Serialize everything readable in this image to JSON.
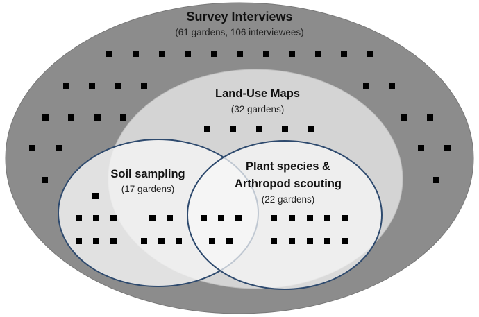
{
  "diagram": {
    "survey": {
      "title": "Survey Interviews",
      "subtitle": "(61 gardens, 106 interviewees)",
      "fill": "#8c8c8c",
      "garden_count": 61
    },
    "land_use": {
      "title": "Land-Use Maps",
      "subtitle": "(32 gardens)",
      "fill": "#d4d4d4",
      "garden_count": 32
    },
    "soil": {
      "title": "Soil sampling",
      "subtitle": "(17 gardens)",
      "fill": "#f4f4f4",
      "border": "#2e4a6e",
      "garden_count": 17
    },
    "plants": {
      "title_line1": "Plant species &",
      "title_line2": "Arthropod scouting",
      "subtitle": "(22 gardens)",
      "fill": "#f8f8f8",
      "border": "#2e4a6e",
      "garden_count": 22
    },
    "marker_color": "#000000",
    "marker_meaning": "garden"
  }
}
